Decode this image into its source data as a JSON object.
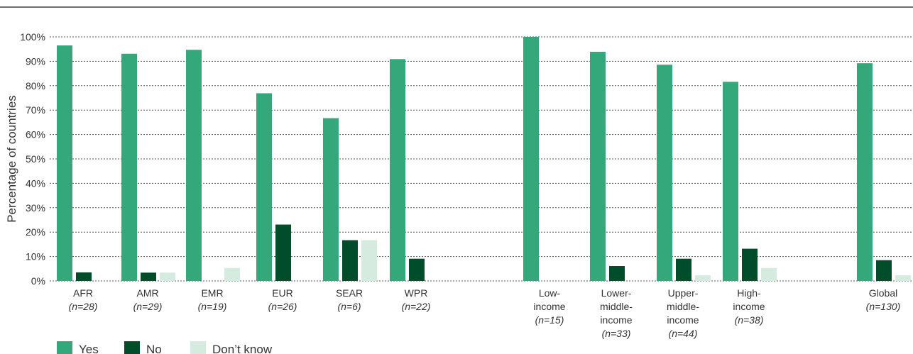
{
  "chart_data": {
    "type": "bar",
    "ylabel": "Percentage of countries",
    "ylim": [
      0,
      100
    ],
    "yticks": [
      0,
      10,
      20,
      30,
      40,
      50,
      60,
      70,
      80,
      90,
      100
    ],
    "ytick_suffix": "%",
    "grid": true,
    "legend_position": "bottom-left",
    "groups": [
      {
        "label": [
          "AFR"
        ],
        "n": "(n=28)",
        "values": [
          96.5,
          3.5,
          0
        ]
      },
      {
        "label": [
          "AMR"
        ],
        "n": "(n=29)",
        "values": [
          93.1,
          3.4,
          3.4
        ]
      },
      {
        "label": [
          "EMR"
        ],
        "n": "(n=19)",
        "values": [
          94.7,
          0,
          5.3
        ]
      },
      {
        "label": [
          "EUR"
        ],
        "n": "(n=26)",
        "values": [
          76.9,
          23.1,
          0
        ]
      },
      {
        "label": [
          "SEAR"
        ],
        "n": "(n=6)",
        "values": [
          66.7,
          16.7,
          16.7
        ]
      },
      {
        "label": [
          "WPR"
        ],
        "n": "(n=22)",
        "values": [
          90.9,
          9.1,
          0
        ]
      },
      {
        "label": [
          "Low-",
          "income"
        ],
        "n": "(n=15)",
        "values": [
          100,
          0,
          0
        ]
      },
      {
        "label": [
          "Lower-",
          "middle-",
          "income"
        ],
        "n": "(n=33)",
        "values": [
          93.9,
          6.1,
          0
        ]
      },
      {
        "label": [
          "Upper-",
          "middle-",
          "income"
        ],
        "n": "(n=44)",
        "values": [
          88.6,
          9.1,
          2.3
        ]
      },
      {
        "label": [
          "High-",
          "income"
        ],
        "n": "(n=38)",
        "values": [
          81.6,
          13.2,
          5.3
        ]
      },
      {
        "label": [
          "Global"
        ],
        "n": "(n=130)",
        "values": [
          89.2,
          8.5,
          2.3
        ]
      }
    ],
    "series": [
      {
        "name": "Yes",
        "color": "#34a87a"
      },
      {
        "name": "No",
        "color": "#004d2c"
      },
      {
        "name": "Don’t know",
        "color": "#d6ebe0"
      }
    ]
  }
}
